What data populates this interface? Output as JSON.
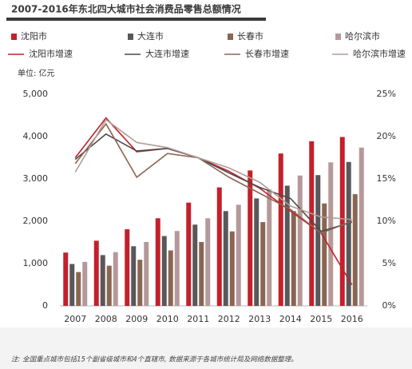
{
  "chart_data": {
    "type": "bar",
    "title": "2007-2016年东北四大城市社会消费品零售总额情况",
    "y_label": "单位: 亿元",
    "note": "注: 全国重点城市包括15个副省级城市和4个直辖市, 数据来源于各城市统计局及网络数据整理。",
    "categories": [
      "2007",
      "2008",
      "2009",
      "2010",
      "2011",
      "2012",
      "2013",
      "2014",
      "2015",
      "2016"
    ],
    "ylim": [
      0,
      5000
    ],
    "yticks": [
      {
        "value": 0,
        "label": "0"
      },
      {
        "value": 1000,
        "label": "1,000"
      },
      {
        "value": 2000,
        "label": "2,000"
      },
      {
        "value": 3000,
        "label": "3,000"
      },
      {
        "value": 4000,
        "label": "4,000"
      },
      {
        "value": 5000,
        "label": "5,000"
      }
    ],
    "y2lim": [
      0,
      25
    ],
    "y2ticks": [
      {
        "value": 0,
        "label": "0%"
      },
      {
        "value": 5,
        "label": "5%"
      },
      {
        "value": 10,
        "label": "10%"
      },
      {
        "value": 15,
        "label": "15%"
      },
      {
        "value": 20,
        "label": "20%"
      },
      {
        "value": 25,
        "label": "25%"
      }
    ],
    "grid": false,
    "series": [
      {
        "name": "沈阳市",
        "type": "bar",
        "color": "#c3202b",
        "values": [
          1260,
          1540,
          1810,
          2070,
          2440,
          2800,
          3200,
          3600,
          3890,
          3990
        ]
      },
      {
        "name": "大连市",
        "type": "bar",
        "color": "#58585a",
        "values": [
          990,
          1200,
          1410,
          1650,
          1920,
          2240,
          2540,
          2840,
          3090,
          3400
        ]
      },
      {
        "name": "长春市",
        "type": "bar",
        "color": "#8a6652",
        "values": [
          800,
          950,
          1090,
          1310,
          1510,
          1760,
          1980,
          2240,
          2420,
          2640
        ]
      },
      {
        "name": "哈尔滨市",
        "type": "bar",
        "color": "#b5999a",
        "values": [
          1040,
          1270,
          1510,
          1770,
          2070,
          2390,
          2750,
          3080,
          3390,
          3740
        ]
      },
      {
        "name": "沈阳市增速",
        "type": "line",
        "axis": "y2",
        "color": "#c3202b",
        "values": [
          17.5,
          22.2,
          18.2,
          18.6,
          17.5,
          15.9,
          13.9,
          11.2,
          8.6,
          2.5
        ]
      },
      {
        "name": "大连市增速",
        "type": "line",
        "axis": "y2",
        "color": "#4a4a4a",
        "values": [
          17.3,
          20.3,
          18.3,
          18.6,
          17.5,
          15.7,
          14.0,
          12.7,
          8.8,
          9.9
        ]
      },
      {
        "name": "长春市增速",
        "type": "line",
        "axis": "y2",
        "color": "#8a6652",
        "values": [
          16.8,
          21.5,
          15.2,
          18.0,
          17.5,
          15.2,
          13.3,
          11.4,
          8.6,
          10.0
        ]
      },
      {
        "name": "哈尔滨市增速",
        "type": "line",
        "axis": "y2",
        "color": "#b09c98",
        "values": [
          15.8,
          22.0,
          19.3,
          18.7,
          17.5,
          16.3,
          14.6,
          11.8,
          10.5,
          10.2
        ]
      }
    ]
  }
}
